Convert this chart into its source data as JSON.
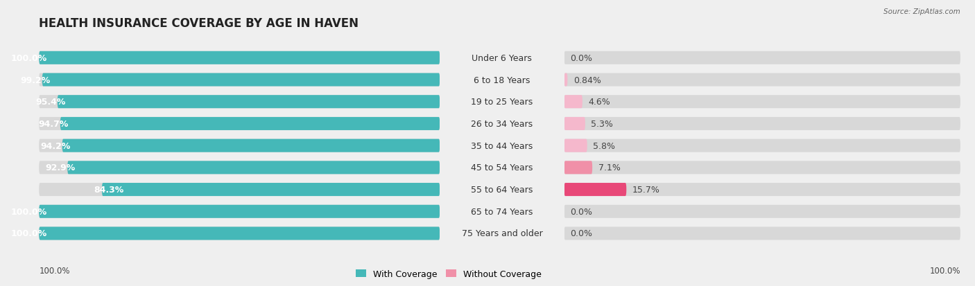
{
  "title": "HEALTH INSURANCE COVERAGE BY AGE IN HAVEN",
  "source": "Source: ZipAtlas.com",
  "categories": [
    "Under 6 Years",
    "6 to 18 Years",
    "19 to 25 Years",
    "26 to 34 Years",
    "35 to 44 Years",
    "45 to 54 Years",
    "55 to 64 Years",
    "65 to 74 Years",
    "75 Years and older"
  ],
  "with_coverage": [
    100.0,
    99.2,
    95.4,
    94.7,
    94.2,
    92.9,
    84.3,
    100.0,
    100.0
  ],
  "without_coverage": [
    0.0,
    0.84,
    4.6,
    5.3,
    5.8,
    7.1,
    15.7,
    0.0,
    0.0
  ],
  "color_with": "#45b8b8",
  "color_without_list": [
    "#f5b8cc",
    "#f5b8cc",
    "#f5b8cc",
    "#f5b8cc",
    "#f5b8cc",
    "#f090a8",
    "#e84878",
    "#f5b8cc",
    "#f5b8cc"
  ],
  "bg_color": "#efefef",
  "bar_bg_color": "#d8d8d8",
  "legend_with": "With Coverage",
  "legend_without": "Without Coverage",
  "axis_label_left": "100.0%",
  "axis_label_right": "100.0%",
  "title_fontsize": 12,
  "label_fontsize": 9,
  "cat_fontsize": 9,
  "bar_height": 0.6,
  "figsize": [
    14.06,
    4.14
  ],
  "dpi": 100
}
